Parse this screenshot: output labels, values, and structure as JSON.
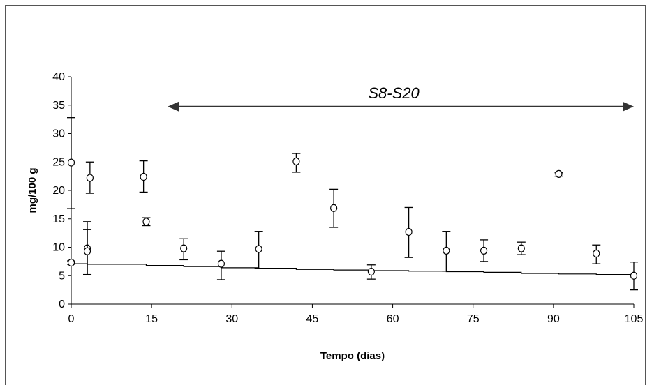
{
  "chart_data": {
    "type": "scatter",
    "xlabel": "Tempo (dias)",
    "ylabel": "mg/100 g",
    "xlim": [
      0,
      105
    ],
    "ylim": [
      0,
      40
    ],
    "x_ticks": [
      "0",
      "15",
      "30",
      "45",
      "60",
      "75",
      "90",
      "105"
    ],
    "y_ticks": [
      "0",
      "5",
      "10",
      "15",
      "20",
      "25",
      "30",
      "35",
      "40"
    ],
    "grid": false,
    "annotation": {
      "text": "S8-S20",
      "x_start": 18,
      "x_end": 105,
      "y": 35
    },
    "series": [
      {
        "marker": "circle-open",
        "points": [
          {
            "x": 0,
            "y": 24.9,
            "err_low": 16.8,
            "err_high": 32.8
          },
          {
            "x": 0,
            "y": 7.3,
            "err_low": 7.0,
            "err_high": 7.6
          },
          {
            "x": 3,
            "y": 9.8,
            "err_low": 5.2,
            "err_high": 14.5
          },
          {
            "x": 3,
            "y": 9.3,
            "err_low": 5.2,
            "err_high": 13.1
          },
          {
            "x": 3.5,
            "y": 22.2,
            "err_low": 19.5,
            "err_high": 25.0
          },
          {
            "x": 13.5,
            "y": 22.4,
            "err_low": 19.7,
            "err_high": 25.2
          },
          {
            "x": 14,
            "y": 14.5,
            "err_low": 13.8,
            "err_high": 15.2
          },
          {
            "x": 21,
            "y": 9.8,
            "err_low": 7.8,
            "err_high": 11.5
          },
          {
            "x": 28,
            "y": 7.1,
            "err_low": 4.3,
            "err_high": 9.3
          },
          {
            "x": 35,
            "y": 9.7,
            "err_low": 6.3,
            "err_high": 12.8
          },
          {
            "x": 42,
            "y": 25.1,
            "err_low": 23.2,
            "err_high": 26.5
          },
          {
            "x": 49,
            "y": 16.9,
            "err_low": 13.5,
            "err_high": 20.2
          },
          {
            "x": 56,
            "y": 5.7,
            "err_low": 4.4,
            "err_high": 6.9
          },
          {
            "x": 63,
            "y": 12.7,
            "err_low": 8.2,
            "err_high": 17.0
          },
          {
            "x": 70,
            "y": 9.4,
            "err_low": 5.8,
            "err_high": 12.8
          },
          {
            "x": 77,
            "y": 9.4,
            "err_low": 7.5,
            "err_high": 11.3
          },
          {
            "x": 84,
            "y": 9.8,
            "err_low": 8.7,
            "err_high": 10.9
          },
          {
            "x": 91,
            "y": 22.9,
            "err_low": 22.5,
            "err_high": 23.1
          },
          {
            "x": 98,
            "y": 8.9,
            "err_low": 7.1,
            "err_high": 10.4
          },
          {
            "x": 105,
            "y": 5.0,
            "err_low": 2.5,
            "err_high": 7.4
          }
        ]
      }
    ],
    "step_line": {
      "x": [
        0,
        3,
        14,
        21,
        28,
        35,
        42,
        49,
        56,
        63,
        70,
        77,
        84,
        91,
        98,
        105
      ],
      "y": [
        7.1,
        7.0,
        6.8,
        6.6,
        6.4,
        6.3,
        6.1,
        6.0,
        5.9,
        5.8,
        5.7,
        5.6,
        5.4,
        5.3,
        5.2,
        5.1
      ]
    }
  }
}
